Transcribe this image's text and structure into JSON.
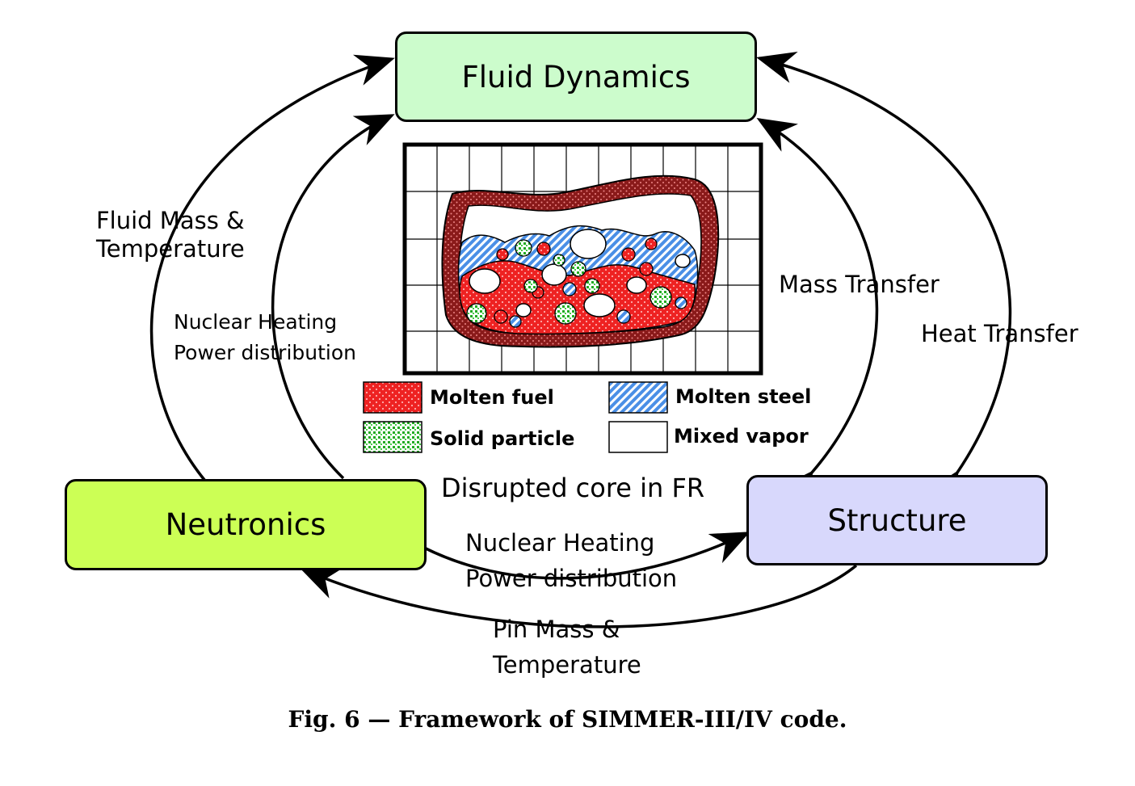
{
  "boxes": {
    "fluid_dynamics": {
      "label": "Fluid Dynamics",
      "color": "#ccfccc"
    },
    "neutronics": {
      "label": "Neutronics",
      "color": "#ccff55"
    },
    "structure": {
      "label": "Structure",
      "color": "#d8d8fc"
    }
  },
  "arrows": {
    "fluid_to_neutronics": [
      "Fluid Mass &",
      "Temperature"
    ],
    "neutronics_to_fluid": [
      "Nuclear Heating",
      "Power distribution"
    ],
    "mass_transfer": "Mass Transfer",
    "heat_transfer": "Heat Transfer",
    "neutronics_to_structure": [
      "Nuclear Heating",
      "Power distribution"
    ],
    "structure_to_neutronics": [
      "Pin Mass &",
      "Temperature"
    ]
  },
  "core": {
    "label": "Disrupted core in FR"
  },
  "legend": {
    "molten_fuel": {
      "label": "Molten fuel",
      "color": "#ee2222"
    },
    "molten_steel": {
      "label": "Molten steel",
      "color": "#5599ee"
    },
    "solid_particle": {
      "label": "Solid particle",
      "color": "#22aa22"
    },
    "mixed_vapor": {
      "label": "Mixed vapor",
      "color": "#ffffff"
    }
  },
  "caption": "Fig. 6 — Framework of SIMMER-III/IV code."
}
